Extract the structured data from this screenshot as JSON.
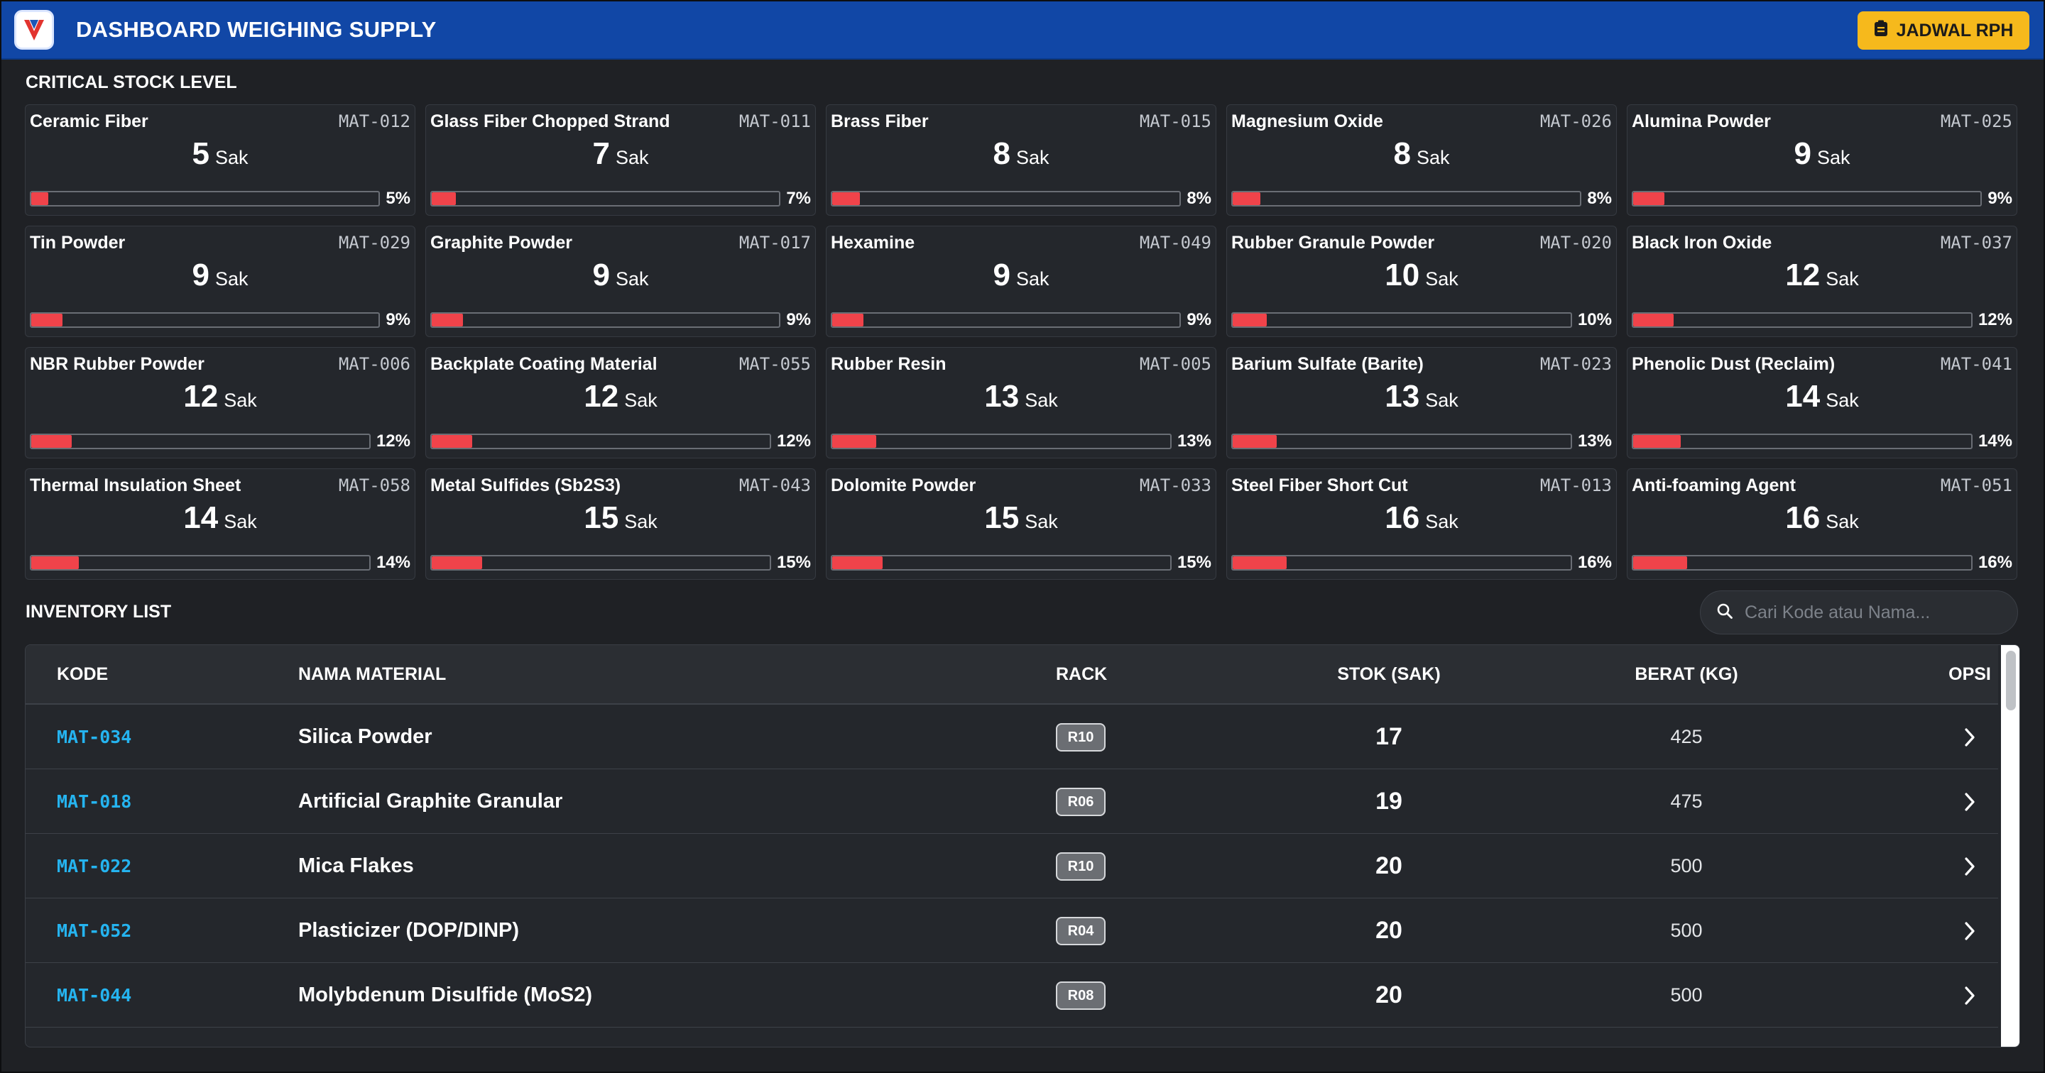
{
  "header": {
    "title": "DASHBOARD WEIGHING SUPPLY",
    "logo_icon": "app-logo-icon",
    "jadwal_button": {
      "label": "JADWAL RPH",
      "icon": "clipboard-icon"
    },
    "color": "#1147a6"
  },
  "critical": {
    "title": "CRITICAL STOCK LEVEL",
    "unit": "Sak",
    "bar_color": "#f0434a",
    "cards": [
      {
        "name": "Ceramic Fiber",
        "code": "MAT-012",
        "qty": "5",
        "pct": "5%",
        "level": 0.05
      },
      {
        "name": "Glass Fiber Chopped Strand",
        "code": "MAT-011",
        "qty": "7",
        "pct": "7%",
        "level": 0.07
      },
      {
        "name": "Brass Fiber",
        "code": "MAT-015",
        "qty": "8",
        "pct": "8%",
        "level": 0.08
      },
      {
        "name": "Magnesium Oxide",
        "code": "MAT-026",
        "qty": "8",
        "pct": "8%",
        "level": 0.08
      },
      {
        "name": "Alumina Powder",
        "code": "MAT-025",
        "qty": "9",
        "pct": "9%",
        "level": 0.09
      },
      {
        "name": "Tin Powder",
        "code": "MAT-029",
        "qty": "9",
        "pct": "9%",
        "level": 0.09
      },
      {
        "name": "Graphite Powder",
        "code": "MAT-017",
        "qty": "9",
        "pct": "9%",
        "level": 0.09
      },
      {
        "name": "Hexamine",
        "code": "MAT-049",
        "qty": "9",
        "pct": "9%",
        "level": 0.09
      },
      {
        "name": "Rubber Granule Powder",
        "code": "MAT-020",
        "qty": "10",
        "pct": "10%",
        "level": 0.1
      },
      {
        "name": "Black Iron Oxide",
        "code": "MAT-037",
        "qty": "12",
        "pct": "12%",
        "level": 0.12
      },
      {
        "name": "NBR Rubber Powder",
        "code": "MAT-006",
        "qty": "12",
        "pct": "12%",
        "level": 0.12
      },
      {
        "name": "Backplate Coating Material",
        "code": "MAT-055",
        "qty": "12",
        "pct": "12%",
        "level": 0.12
      },
      {
        "name": "Rubber Resin",
        "code": "MAT-005",
        "qty": "13",
        "pct": "13%",
        "level": 0.13
      },
      {
        "name": "Barium Sulfate (Barite)",
        "code": "MAT-023",
        "qty": "13",
        "pct": "13%",
        "level": 0.13
      },
      {
        "name": "Phenolic Dust (Reclaim)",
        "code": "MAT-041",
        "qty": "14",
        "pct": "14%",
        "level": 0.14
      },
      {
        "name": "Thermal Insulation Sheet",
        "code": "MAT-058",
        "qty": "14",
        "pct": "14%",
        "level": 0.14
      },
      {
        "name": "Metal Sulfides (Sb2S3)",
        "code": "MAT-043",
        "qty": "15",
        "pct": "15%",
        "level": 0.15
      },
      {
        "name": "Dolomite Powder",
        "code": "MAT-033",
        "qty": "15",
        "pct": "15%",
        "level": 0.15
      },
      {
        "name": "Steel Fiber Short Cut",
        "code": "MAT-013",
        "qty": "16",
        "pct": "16%",
        "level": 0.16
      },
      {
        "name": "Anti-foaming Agent",
        "code": "MAT-051",
        "qty": "16",
        "pct": "16%",
        "level": 0.16
      }
    ]
  },
  "inventory": {
    "title": "INVENTORY LIST",
    "search": {
      "placeholder": "Cari Kode atau Nama...",
      "value": "",
      "icon": "search-icon"
    },
    "columns": [
      "KODE",
      "NAMA MATERIAL",
      "RACK",
      "STOK (SAK)",
      "BERAT (KG)",
      "OPSI"
    ],
    "rows": [
      {
        "kode": "MAT-034",
        "nama": "Silica Powder",
        "rack": "R10",
        "stok": "17",
        "berat": "425"
      },
      {
        "kode": "MAT-018",
        "nama": "Artificial Graphite Granular",
        "rack": "R06",
        "stok": "19",
        "berat": "475"
      },
      {
        "kode": "MAT-022",
        "nama": "Mica Flakes",
        "rack": "R10",
        "stok": "20",
        "berat": "500"
      },
      {
        "kode": "MAT-052",
        "nama": "Plasticizer (DOP/DINP)",
        "rack": "R04",
        "stok": "20",
        "berat": "500"
      },
      {
        "kode": "MAT-044",
        "nama": "Molybdenum Disulfide (MoS2)",
        "rack": "R08",
        "stok": "20",
        "berat": "500"
      }
    ],
    "row_action_icon": "chevron-right-icon",
    "code_color": "#25b4f0"
  }
}
